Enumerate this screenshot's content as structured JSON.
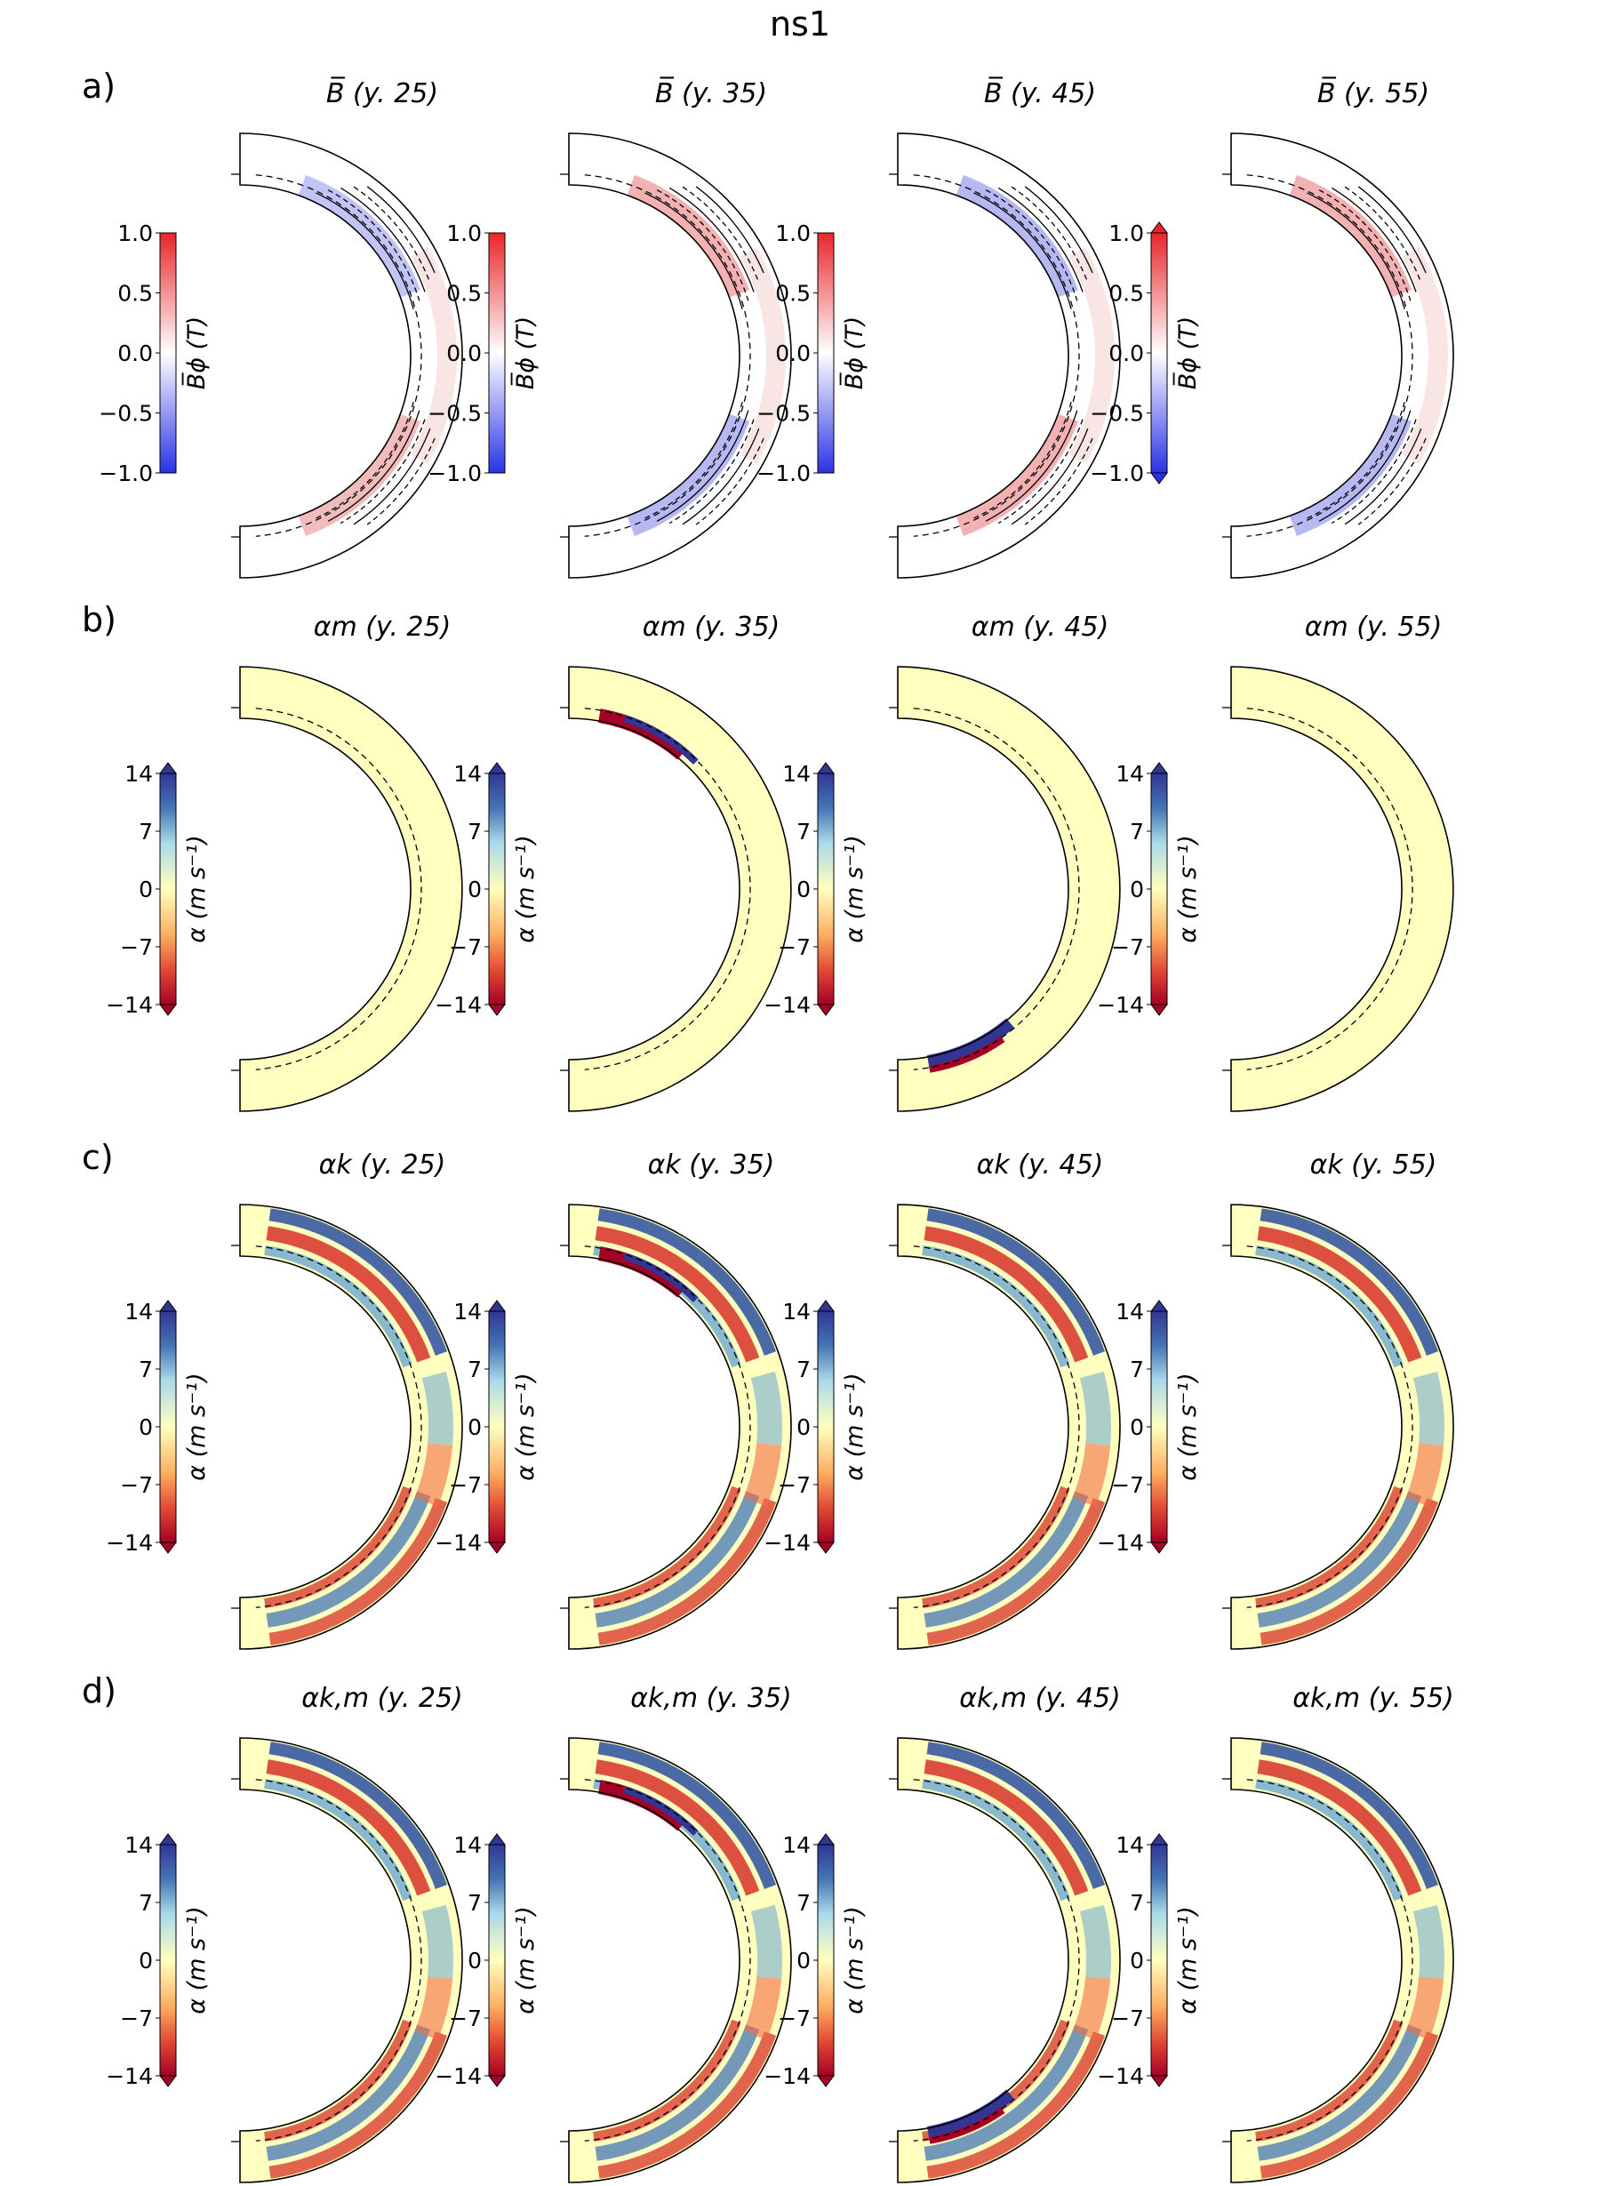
{
  "figure_title": "ns1",
  "chart_data": {
    "type": "heatmap",
    "title": "ns1",
    "description_note": "Meridional (half-disc) contour maps of a simulated star: 4 rows x 4 epochs",
    "epochs": [
      "(y. 25)",
      "(y. 35)",
      "(y. 45)",
      "(y. 55)"
    ],
    "rows": [
      {
        "label": "a)",
        "quantity": "B̅",
        "titles": [
          "B̅ (y. 25)",
          "B̅ (y. 35)",
          "B̅ (y. 45)",
          "B̅ (y. 55)"
        ],
        "colorbar_label": "B̅ϕ (T)",
        "colormap": "bwr",
        "ticks": [
          "1.0",
          "0.5",
          "0.0",
          "−0.5",
          "−1.0"
        ],
        "range": [
          -1.0,
          1.0
        ]
      },
      {
        "label": "b)",
        "quantity": "αm",
        "titles": [
          "αm (y. 25)",
          "αm (y. 35)",
          "αm (y. 45)",
          "αm (y. 55)"
        ],
        "colorbar_label": "α (m s⁻¹)",
        "colormap": "RdYlBu",
        "ticks": [
          "14",
          "7",
          "0",
          "−7",
          "−14"
        ],
        "range": [
          -14,
          14
        ]
      },
      {
        "label": "c)",
        "quantity": "αk",
        "titles": [
          "αk (y. 25)",
          "αk (y. 35)",
          "αk (y. 45)",
          "αk (y. 55)"
        ],
        "colorbar_label": "α (m s⁻¹)",
        "colormap": "RdYlBu",
        "ticks": [
          "14",
          "7",
          "0",
          "−7",
          "−14"
        ],
        "range": [
          -14,
          14
        ]
      },
      {
        "label": "d)",
        "quantity": "αk,m",
        "titles": [
          "αk,m (y. 25)",
          "αk,m (y. 35)",
          "αk,m (y. 45)",
          "αk,m (y. 55)"
        ],
        "colorbar_label": "α (m s⁻¹)",
        "colormap": "RdYlBu",
        "ticks": [
          "14",
          "7",
          "0",
          "−7",
          "−14"
        ],
        "range": [
          -14,
          14
        ]
      }
    ]
  },
  "colors": {
    "bwr_pos": "#e8262b",
    "bwr_neg": "#2a33e6",
    "rdylbu_low": "#a50026",
    "rdylbu_mid": "#ffffbf",
    "rdylbu_high": "#313695"
  }
}
